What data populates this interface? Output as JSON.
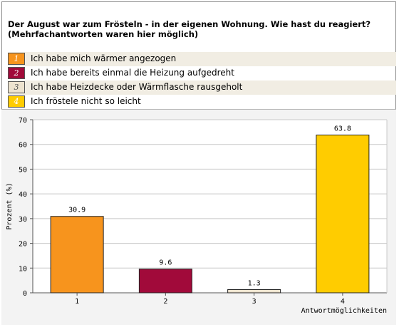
{
  "question": {
    "line1": "Der August war zum Frösteln - in der eigenen Wohnung. Wie hast du reagiert?",
    "line2": "(Mehrfachantworten waren hier möglich)"
  },
  "legend": [
    {
      "number": "1",
      "label": "Ich habe mich wärmer angezogen",
      "color": "#f7941d",
      "numcolor": "#ffffff"
    },
    {
      "number": "2",
      "label": "Ich habe bereits einmal die Heizung aufgedreht",
      "color": "#a10a3a",
      "numcolor": "#ffffff"
    },
    {
      "number": "3",
      "label": "Ich habe Heizdecke oder Wärmflasche rausgeholt",
      "color": "#ede3cf",
      "numcolor": "#555555"
    },
    {
      "number": "4",
      "label": "Ich fröstele nicht so leicht",
      "color": "#ffcc00",
      "numcolor": "#ffffff"
    }
  ],
  "chart_data": {
    "type": "bar",
    "categories": [
      "1",
      "2",
      "3",
      "4"
    ],
    "values": [
      30.9,
      9.6,
      1.3,
      63.8
    ],
    "value_labels": [
      "30.9",
      "9.6",
      "1.3",
      "63.8"
    ],
    "colors": [
      "#f7941d",
      "#a10a3a",
      "#ede3cf",
      "#ffcc00"
    ],
    "ylabel": "Prozent (%)",
    "xlabel": "Antwortmöglichkeiten",
    "ylim": [
      0,
      70
    ],
    "yticks": [
      0,
      10,
      20,
      30,
      40,
      50,
      60,
      70
    ],
    "grid": true
  }
}
